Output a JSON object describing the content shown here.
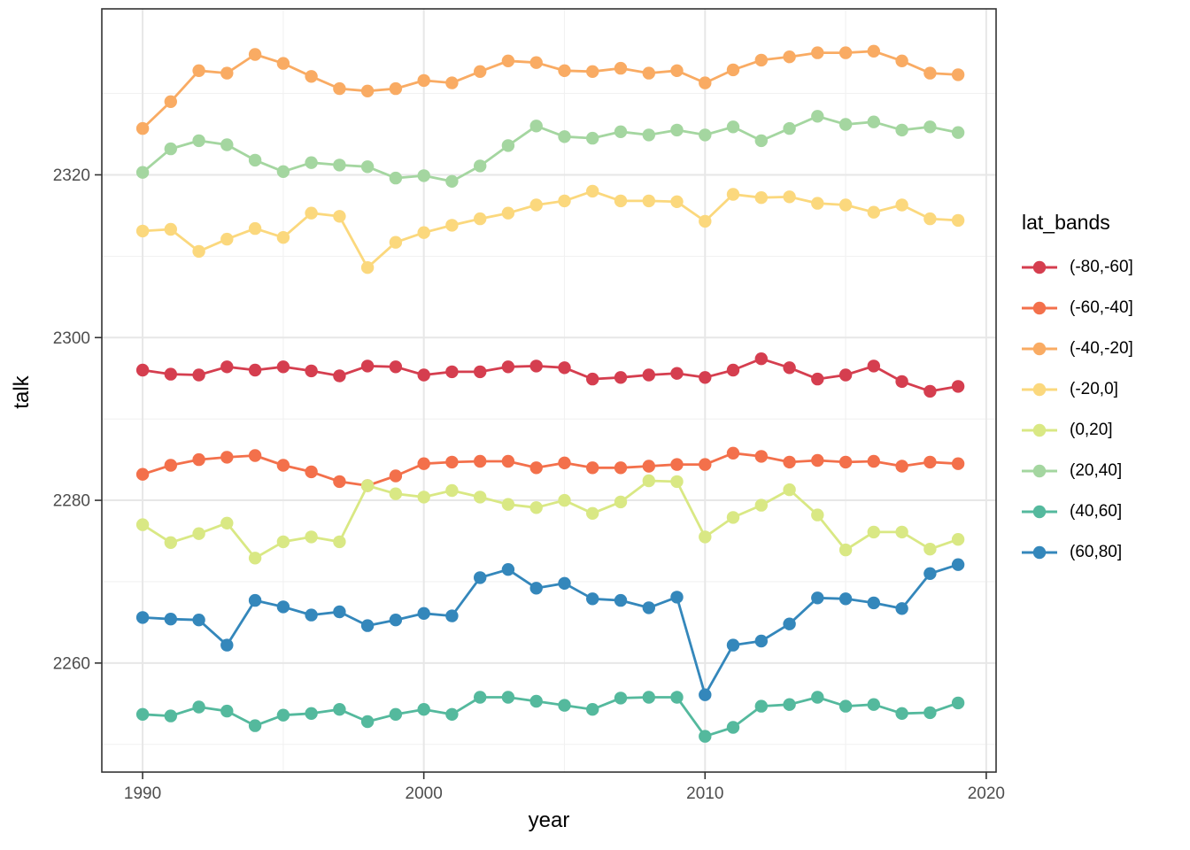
{
  "axes": {
    "x_title": "year",
    "y_title": "talk",
    "x_tick_labels": [
      "1990",
      "2000",
      "2010",
      "2020"
    ],
    "y_tick_labels": [
      "2260",
      "2280",
      "2300",
      "2320"
    ]
  },
  "legend": {
    "title": "lat_bands",
    "entries": [
      {
        "label": "(-80,-60]"
      },
      {
        "label": "(-60,-40]"
      },
      {
        "label": "(-40,-20]"
      },
      {
        "label": "(-20,0]"
      },
      {
        "label": "(0,20]"
      },
      {
        "label": "(20,40]"
      },
      {
        "label": "(40,60]"
      },
      {
        "label": "(60,80]"
      }
    ]
  },
  "colors": {
    "background": "#ffffff",
    "panel_background": "#ffffff",
    "grid_major": "#e7e7e7",
    "grid_minor": "#f1f1f1",
    "panel_border": "#333333",
    "tick_mark": "#333333",
    "tick_label": "#4d4d4d",
    "axis_title": "#000000"
  },
  "chart_data": {
    "type": "line",
    "title": "",
    "xlabel": "year",
    "ylabel": "talk",
    "legend_title": "lat_bands",
    "legend_position": "right",
    "grid": "on",
    "xlim": [
      1988.55,
      2020.35
    ],
    "ylim": [
      2246.6,
      2340.4
    ],
    "x_major_ticks": [
      1990,
      2000,
      2010,
      2020
    ],
    "x_minor_gridlines": [
      1995,
      2005,
      2015
    ],
    "y_major_ticks": [
      2260,
      2280,
      2300,
      2320
    ],
    "y_minor_gridlines": [
      2250,
      2270,
      2290,
      2310,
      2330
    ],
    "x": [
      1990,
      1991,
      1992,
      1993,
      1994,
      1995,
      1996,
      1997,
      1998,
      1999,
      2000,
      2001,
      2002,
      2003,
      2004,
      2005,
      2006,
      2007,
      2008,
      2009,
      2010,
      2011,
      2012,
      2013,
      2014,
      2015,
      2016,
      2017,
      2018,
      2019
    ],
    "series": [
      {
        "name": "(-80,-60]",
        "color": "#d53e4f",
        "values": [
          2296.0,
          2295.5,
          2295.4,
          2296.4,
          2296.0,
          2296.4,
          2295.9,
          2295.3,
          2296.5,
          2296.4,
          2295.4,
          2295.8,
          2295.8,
          2296.4,
          2296.5,
          2296.3,
          2294.9,
          2295.1,
          2295.4,
          2295.6,
          2295.1,
          2296.0,
          2297.4,
          2296.3,
          2294.9,
          2295.4,
          2296.5,
          2294.6,
          2293.4,
          2294.0
        ]
      },
      {
        "name": "(-60,-40]",
        "color": "#f3704b",
        "values": [
          2283.2,
          2284.3,
          2285.0,
          2285.3,
          2285.5,
          2284.3,
          2283.5,
          2282.3,
          2281.8,
          2283.0,
          2284.5,
          2284.7,
          2284.8,
          2284.8,
          2284.0,
          2284.6,
          2284.0,
          2284.0,
          2284.2,
          2284.4,
          2284.4,
          2285.8,
          2285.4,
          2284.7,
          2284.9,
          2284.7,
          2284.8,
          2284.2,
          2284.7,
          2284.5
        ]
      },
      {
        "name": "(-40,-20]",
        "color": "#f9ab63",
        "values": [
          2325.7,
          2329.0,
          2332.8,
          2332.5,
          2334.8,
          2333.7,
          2332.1,
          2330.6,
          2330.3,
          2330.6,
          2331.6,
          2331.3,
          2332.7,
          2334.0,
          2333.8,
          2332.8,
          2332.7,
          2333.1,
          2332.5,
          2332.8,
          2331.3,
          2332.9,
          2334.1,
          2334.5,
          2335.0,
          2335.0,
          2335.2,
          2334.0,
          2332.5,
          2332.3
        ]
      },
      {
        "name": "(-20,0]",
        "color": "#fbd87d",
        "values": [
          2313.1,
          2313.3,
          2310.6,
          2312.1,
          2313.4,
          2312.3,
          2315.3,
          2314.9,
          2308.6,
          2311.7,
          2312.9,
          2313.8,
          2314.6,
          2315.3,
          2316.3,
          2316.8,
          2318.0,
          2316.8,
          2316.8,
          2316.7,
          2314.3,
          2317.6,
          2317.2,
          2317.3,
          2316.5,
          2316.3,
          2315.4,
          2316.3,
          2314.6,
          2314.4
        ]
      },
      {
        "name": "(0,20]",
        "color": "#d9e884",
        "values": [
          2277.0,
          2274.8,
          2275.9,
          2277.2,
          2272.9,
          2274.9,
          2275.5,
          2274.9,
          2281.8,
          2280.8,
          2280.4,
          2281.2,
          2280.4,
          2279.5,
          2279.1,
          2280.0,
          2278.4,
          2279.8,
          2282.4,
          2282.3,
          2275.5,
          2277.9,
          2279.4,
          2281.3,
          2278.2,
          2273.9,
          2276.1,
          2276.1,
          2274.0,
          2275.2
        ]
      },
      {
        "name": "(20,40]",
        "color": "#a4d6a0",
        "values": [
          2320.3,
          2323.2,
          2324.2,
          2323.7,
          2321.8,
          2320.4,
          2321.5,
          2321.2,
          2321.0,
          2319.6,
          2319.9,
          2319.2,
          2321.1,
          2323.6,
          2326.0,
          2324.7,
          2324.5,
          2325.3,
          2324.9,
          2325.5,
          2324.9,
          2325.9,
          2324.2,
          2325.7,
          2327.2,
          2326.2,
          2326.5,
          2325.5,
          2325.9,
          2325.2
        ]
      },
      {
        "name": "(40,60]",
        "color": "#54b99d",
        "values": [
          2253.7,
          2253.5,
          2254.6,
          2254.1,
          2252.3,
          2253.6,
          2253.8,
          2254.3,
          2252.8,
          2253.7,
          2254.3,
          2253.7,
          2255.8,
          2255.8,
          2255.3,
          2254.8,
          2254.3,
          2255.7,
          2255.8,
          2255.8,
          2251.0,
          2252.1,
          2254.7,
          2254.9,
          2255.8,
          2254.7,
          2254.9,
          2253.8,
          2253.9,
          2255.1
        ]
      },
      {
        "name": "(60,80]",
        "color": "#3487bb",
        "values": [
          2265.6,
          2265.4,
          2265.3,
          2262.2,
          2267.7,
          2266.9,
          2265.9,
          2266.3,
          2264.6,
          2265.3,
          2266.1,
          2265.8,
          2270.5,
          2271.5,
          2269.2,
          2269.8,
          2267.9,
          2267.7,
          2266.8,
          2268.1,
          2256.1,
          2262.2,
          2262.7,
          2264.8,
          2268.0,
          2267.9,
          2267.4,
          2266.7,
          2271.0,
          2272.1
        ]
      }
    ]
  }
}
